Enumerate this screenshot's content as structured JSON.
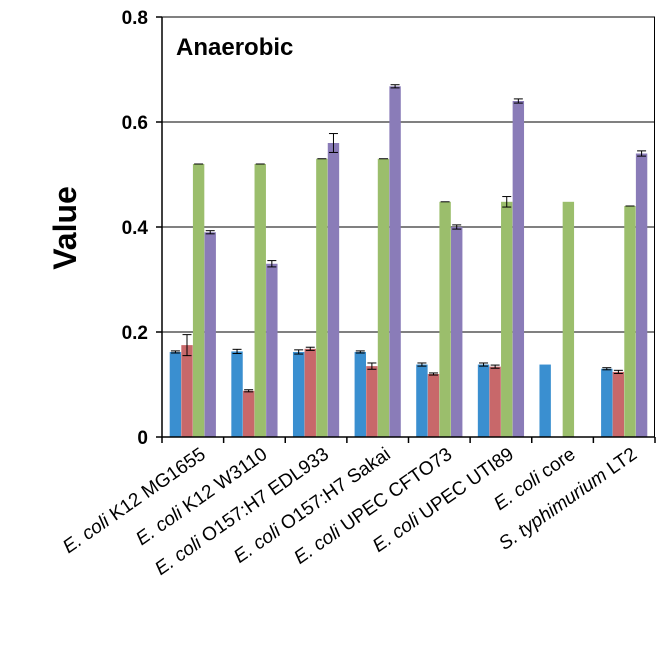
{
  "chart_data": {
    "type": "bar",
    "title": "Anaerobic",
    "ylabel": "Value",
    "xlabel": "",
    "ylim": [
      0,
      0.8
    ],
    "yticks": [
      {
        "value": 0,
        "label": "0"
      },
      {
        "value": 0.2,
        "label": "0.2"
      },
      {
        "value": 0.4,
        "label": "0.4"
      },
      {
        "value": 0.6,
        "label": "0.6"
      },
      {
        "value": 0.8,
        "label": "0.8"
      }
    ],
    "grid": true,
    "legend": "none",
    "categories": [
      {
        "italic": "E. coli",
        "rest": " K12 MG1655"
      },
      {
        "italic": "E. coli",
        "rest": " K12 W3110"
      },
      {
        "italic": "E. coli",
        "rest": " O157:H7 EDL933"
      },
      {
        "italic": "E. coli",
        "rest": " O157:H7 Sakai"
      },
      {
        "italic": "E. coli",
        "rest": "  UPEC CFTO73"
      },
      {
        "italic": "E. coli",
        "rest": "  UPEC UTI89"
      },
      {
        "italic": "E. coli",
        "rest": "  core"
      },
      {
        "italic": "S. typhimurium",
        "rest": " LT2"
      }
    ],
    "series": [
      {
        "color": "#3a8fd0",
        "values": [
          0.162,
          0.163,
          0.162,
          0.162,
          0.138,
          0.138,
          0.138,
          0.13
        ],
        "errors": [
          0.002,
          0.004,
          0.004,
          0.002,
          0.003,
          0.003,
          0,
          0.002
        ]
      },
      {
        "color": "#c8686a",
        "values": [
          0.175,
          0.088,
          0.168,
          0.135,
          0.12,
          0.134,
          0,
          0.124
        ],
        "errors": [
          0.02,
          0.002,
          0.003,
          0.006,
          0.002,
          0.003,
          0,
          0.003
        ]
      },
      {
        "color": "#9bbe6c",
        "values": [
          0.52,
          0.52,
          0.53,
          0.53,
          0.448,
          0.448,
          0.448,
          0.44
        ],
        "errors": [
          0,
          0,
          0,
          0,
          0,
          0.01,
          0,
          0
        ]
      },
      {
        "color": "#8a7cb8",
        "values": [
          0.39,
          0.33,
          0.56,
          0.668,
          0.4,
          0.64,
          0,
          0.54
        ],
        "errors": [
          0.003,
          0.006,
          0.018,
          0.003,
          0.004,
          0.004,
          0,
          0.005
        ]
      }
    ]
  }
}
